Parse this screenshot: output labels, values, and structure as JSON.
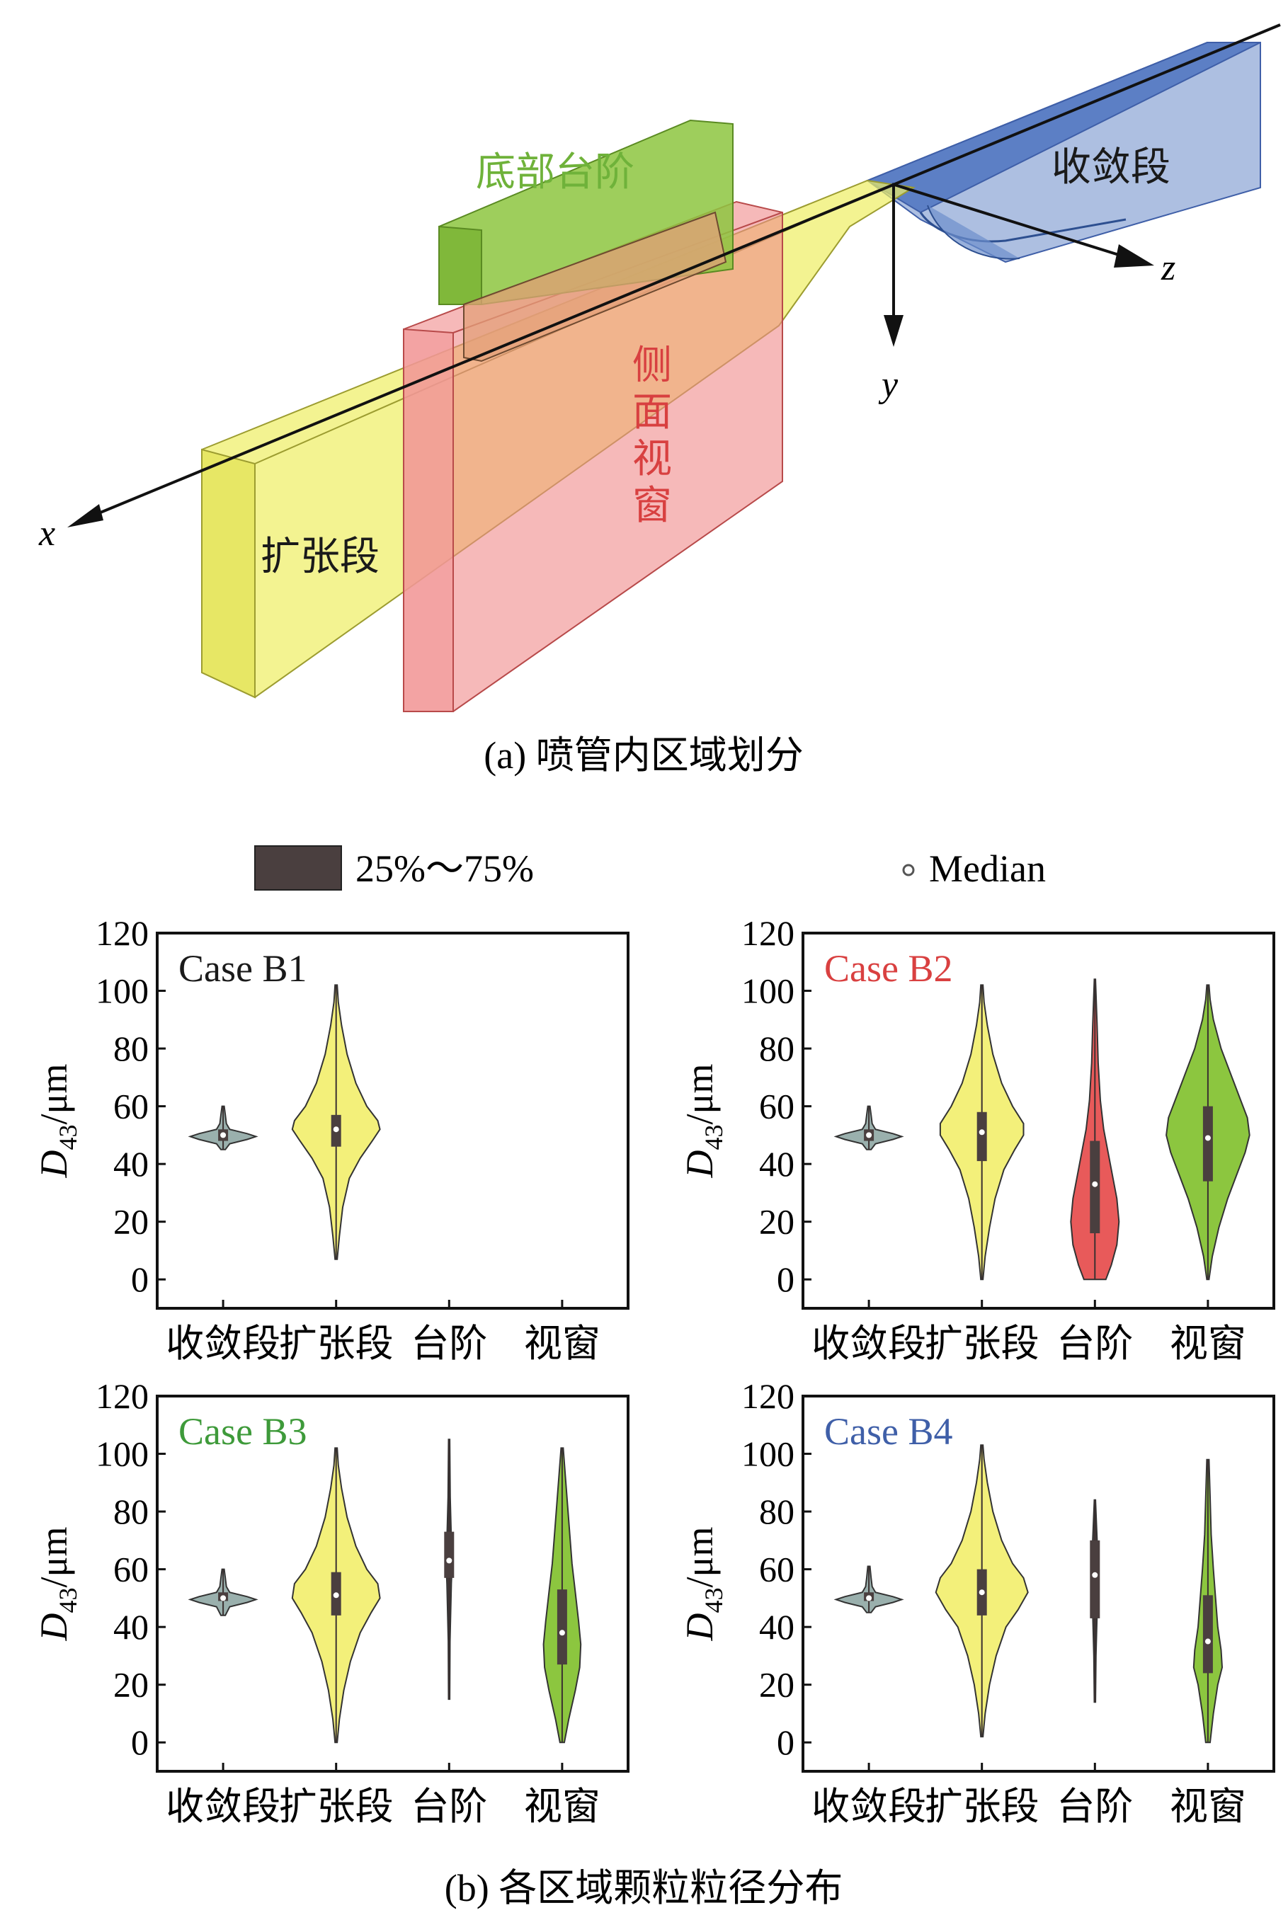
{
  "panel_a": {
    "caption": "(a) 喷管内区域划分",
    "region_labels": {
      "bottom_step": "底部台阶",
      "converging": "收敛段",
      "diverging": "扩张段",
      "side_window": "侧面视窗"
    },
    "axis_labels": {
      "x": "x",
      "y": "y",
      "z": "z"
    },
    "colors": {
      "bottom_step": "#8dc63f",
      "converging": "#5b7fc4",
      "diverging": "#eeee66",
      "side_window": "#f08a8a"
    }
  },
  "legend": {
    "box_label": "25%～75%",
    "median_label": "Median"
  },
  "panel_b": {
    "caption": "(b) 各区域颗粒粒径分布"
  },
  "chart_data": [
    {
      "type": "violin",
      "title": "Case B1",
      "title_color": "#1a1a1a",
      "ylabel": "D43/μm",
      "ylim": [
        -10,
        120
      ],
      "yticks": [
        0,
        20,
        40,
        60,
        80,
        100,
        120
      ],
      "categories": [
        "收敛段",
        "扩张段",
        "台阶",
        "视窗"
      ],
      "violins": [
        {
          "category": "收敛段",
          "color": "#9ab0ad",
          "min": 45,
          "q1": 48,
          "median": 50,
          "q3": 52,
          "max": 60,
          "profile": [
            [
              45,
              0.02
            ],
            [
              47,
              0.06
            ],
            [
              48.5,
              0.22
            ],
            [
              49.5,
              0.3
            ],
            [
              50.5,
              0.22
            ],
            [
              52,
              0.06
            ],
            [
              54,
              0.03
            ],
            [
              57,
              0.02
            ],
            [
              60,
              0.01
            ]
          ]
        },
        {
          "category": "扩张段",
          "color": "#f3f07a",
          "min": 7,
          "q1": 46,
          "median": 52,
          "q3": 57,
          "max": 102,
          "profile": [
            [
              7,
              0.01
            ],
            [
              15,
              0.03
            ],
            [
              25,
              0.06
            ],
            [
              35,
              0.12
            ],
            [
              42,
              0.22
            ],
            [
              48,
              0.33
            ],
            [
              52,
              0.4
            ],
            [
              55,
              0.38
            ],
            [
              60,
              0.28
            ],
            [
              68,
              0.18
            ],
            [
              78,
              0.1
            ],
            [
              88,
              0.05
            ],
            [
              96,
              0.02
            ],
            [
              102,
              0.01
            ]
          ]
        }
      ]
    },
    {
      "type": "violin",
      "title": "Case B2",
      "title_color": "#d94040",
      "ylabel": "D43/μm",
      "ylim": [
        -10,
        120
      ],
      "yticks": [
        0,
        20,
        40,
        60,
        80,
        100,
        120
      ],
      "categories": [
        "收敛段",
        "扩张段",
        "台阶",
        "视窗"
      ],
      "violins": [
        {
          "category": "收敛段",
          "color": "#9ab0ad",
          "min": 45,
          "q1": 48,
          "median": 50,
          "q3": 52,
          "max": 60,
          "profile": [
            [
              45,
              0.02
            ],
            [
              47,
              0.06
            ],
            [
              48.5,
              0.22
            ],
            [
              49.5,
              0.3
            ],
            [
              50.5,
              0.22
            ],
            [
              52,
              0.06
            ],
            [
              54,
              0.03
            ],
            [
              57,
              0.02
            ],
            [
              60,
              0.01
            ]
          ]
        },
        {
          "category": "扩张段",
          "color": "#f3f07a",
          "min": 0,
          "q1": 41,
          "median": 51,
          "q3": 58,
          "max": 102,
          "profile": [
            [
              0,
              0.01
            ],
            [
              8,
              0.03
            ],
            [
              18,
              0.07
            ],
            [
              28,
              0.12
            ],
            [
              38,
              0.2
            ],
            [
              45,
              0.3
            ],
            [
              50,
              0.38
            ],
            [
              54,
              0.38
            ],
            [
              60,
              0.28
            ],
            [
              68,
              0.18
            ],
            [
              78,
              0.1
            ],
            [
              88,
              0.05
            ],
            [
              96,
              0.02
            ],
            [
              102,
              0.01
            ]
          ]
        },
        {
          "category": "台阶",
          "color": "#e85a5a",
          "min": 0,
          "q1": 16,
          "median": 33,
          "q3": 48,
          "max": 104,
          "profile": [
            [
              0,
              0.1
            ],
            [
              5,
              0.15
            ],
            [
              12,
              0.2
            ],
            [
              20,
              0.22
            ],
            [
              28,
              0.2
            ],
            [
              36,
              0.16
            ],
            [
              44,
              0.12
            ],
            [
              52,
              0.08
            ],
            [
              62,
              0.05
            ],
            [
              75,
              0.03
            ],
            [
              88,
              0.02
            ],
            [
              104,
              0.005
            ]
          ]
        },
        {
          "category": "视窗",
          "color": "#8cc63f",
          "min": 0,
          "q1": 34,
          "median": 49,
          "q3": 60,
          "max": 102,
          "profile": [
            [
              0,
              0.01
            ],
            [
              8,
              0.04
            ],
            [
              18,
              0.1
            ],
            [
              28,
              0.18
            ],
            [
              36,
              0.26
            ],
            [
              44,
              0.34
            ],
            [
              50,
              0.38
            ],
            [
              56,
              0.36
            ],
            [
              62,
              0.3
            ],
            [
              70,
              0.22
            ],
            [
              80,
              0.12
            ],
            [
              90,
              0.05
            ],
            [
              97,
              0.02
            ],
            [
              102,
              0.01
            ]
          ]
        }
      ]
    },
    {
      "type": "violin",
      "title": "Case B3",
      "title_color": "#3e9a3a",
      "ylabel": "D43/μm",
      "ylim": [
        -10,
        120
      ],
      "yticks": [
        0,
        20,
        40,
        60,
        80,
        100,
        120
      ],
      "categories": [
        "收敛段",
        "扩张段",
        "台阶",
        "视窗"
      ],
      "violins": [
        {
          "category": "收敛段",
          "color": "#9ab0ad",
          "min": 44,
          "q1": 49,
          "median": 50,
          "q3": 52,
          "max": 60,
          "profile": [
            [
              44,
              0.02
            ],
            [
              47,
              0.06
            ],
            [
              48.5,
              0.22
            ],
            [
              49.5,
              0.3
            ],
            [
              50.5,
              0.22
            ],
            [
              52,
              0.06
            ],
            [
              54,
              0.03
            ],
            [
              57,
              0.02
            ],
            [
              60,
              0.01
            ]
          ]
        },
        {
          "category": "扩张段",
          "color": "#f3f07a",
          "min": 0,
          "q1": 44,
          "median": 51,
          "q3": 59,
          "max": 102,
          "profile": [
            [
              0,
              0.01
            ],
            [
              8,
              0.03
            ],
            [
              18,
              0.07
            ],
            [
              28,
              0.13
            ],
            [
              38,
              0.22
            ],
            [
              45,
              0.32
            ],
            [
              50,
              0.4
            ],
            [
              55,
              0.38
            ],
            [
              60,
              0.28
            ],
            [
              68,
              0.18
            ],
            [
              78,
              0.1
            ],
            [
              88,
              0.05
            ],
            [
              96,
              0.02
            ],
            [
              102,
              0.01
            ]
          ]
        },
        {
          "category": "台阶",
          "color": "#4a3f3f",
          "min": 15,
          "q1": 57,
          "median": 63,
          "q3": 73,
          "max": 105,
          "profile": [
            [
              15,
              0.005
            ],
            [
              35,
              0.008
            ],
            [
              55,
              0.02
            ],
            [
              60,
              0.025
            ],
            [
              70,
              0.02
            ],
            [
              85,
              0.01
            ],
            [
              105,
              0.005
            ]
          ]
        },
        {
          "category": "视窗",
          "color": "#8cc63f",
          "min": 0,
          "q1": 27,
          "median": 38,
          "q3": 53,
          "max": 102,
          "profile": [
            [
              0,
              0.02
            ],
            [
              8,
              0.06
            ],
            [
              18,
              0.12
            ],
            [
              26,
              0.16
            ],
            [
              34,
              0.17
            ],
            [
              42,
              0.15
            ],
            [
              52,
              0.12
            ],
            [
              62,
              0.09
            ],
            [
              72,
              0.07
            ],
            [
              82,
              0.05
            ],
            [
              92,
              0.03
            ],
            [
              102,
              0.01
            ]
          ]
        }
      ]
    },
    {
      "type": "violin",
      "title": "Case B4",
      "title_color": "#3f5fa8",
      "ylabel": "D43/μm",
      "ylim": [
        -10,
        120
      ],
      "yticks": [
        0,
        20,
        40,
        60,
        80,
        100,
        120
      ],
      "categories": [
        "收敛段",
        "扩张段",
        "台阶",
        "视窗"
      ],
      "violins": [
        {
          "category": "收敛段",
          "color": "#9ab0ad",
          "min": 45,
          "q1": 49,
          "median": 50,
          "q3": 52,
          "max": 61,
          "profile": [
            [
              45,
              0.02
            ],
            [
              47,
              0.06
            ],
            [
              48.5,
              0.22
            ],
            [
              49.5,
              0.3
            ],
            [
              50.5,
              0.22
            ],
            [
              52,
              0.06
            ],
            [
              54,
              0.03
            ],
            [
              57,
              0.02
            ],
            [
              61,
              0.01
            ]
          ]
        },
        {
          "category": "扩张段",
          "color": "#f3f07a",
          "min": 2,
          "q1": 44,
          "median": 52,
          "q3": 60,
          "max": 103,
          "profile": [
            [
              2,
              0.01
            ],
            [
              10,
              0.03
            ],
            [
              20,
              0.07
            ],
            [
              30,
              0.13
            ],
            [
              40,
              0.22
            ],
            [
              46,
              0.33
            ],
            [
              52,
              0.42
            ],
            [
              57,
              0.38
            ],
            [
              62,
              0.28
            ],
            [
              70,
              0.18
            ],
            [
              80,
              0.1
            ],
            [
              90,
              0.05
            ],
            [
              98,
              0.02
            ],
            [
              103,
              0.01
            ]
          ]
        },
        {
          "category": "台阶",
          "color": "#4a3f3f",
          "min": 14,
          "q1": 43,
          "median": 58,
          "q3": 70,
          "max": 84,
          "profile": [
            [
              14,
              0.005
            ],
            [
              30,
              0.01
            ],
            [
              45,
              0.02
            ],
            [
              58,
              0.025
            ],
            [
              70,
              0.02
            ],
            [
              84,
              0.005
            ]
          ]
        },
        {
          "category": "视窗",
          "color": "#8cc63f",
          "min": 0,
          "q1": 24,
          "median": 35,
          "q3": 51,
          "max": 98,
          "profile": [
            [
              0,
              0.02
            ],
            [
              10,
              0.05
            ],
            [
              20,
              0.09
            ],
            [
              26,
              0.13
            ],
            [
              32,
              0.12
            ],
            [
              40,
              0.09
            ],
            [
              50,
              0.07
            ],
            [
              60,
              0.05
            ],
            [
              72,
              0.03
            ],
            [
              85,
              0.02
            ],
            [
              98,
              0.01
            ]
          ]
        }
      ]
    }
  ]
}
